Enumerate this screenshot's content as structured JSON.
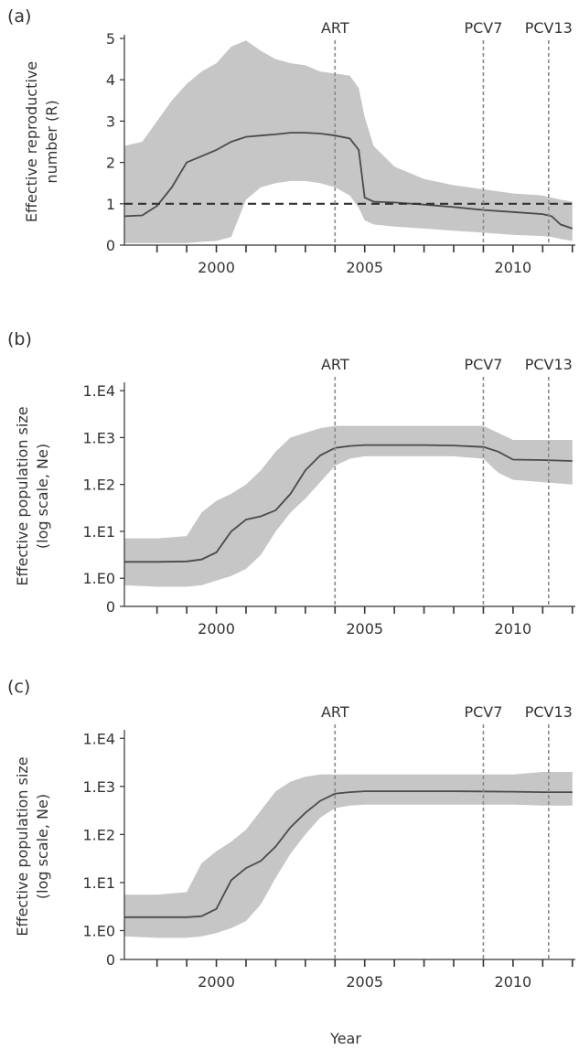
{
  "figure": {
    "xlabel": "Year",
    "colors": {
      "band": "#c6c6c6",
      "line": "#4a4a4a",
      "axis": "#333333",
      "marker": "#8a8a8a",
      "threshold": "#333333"
    }
  },
  "chart_data": [
    {
      "panel": "(a)",
      "type": "area",
      "ylabel_lines": [
        "Effective reproductive",
        "number (R)"
      ],
      "y_scale": "linear",
      "xlim": [
        1996.9,
        2012.1
      ],
      "ylim": [
        0,
        5
      ],
      "yticks": [
        {
          "v": 0,
          "label": "0"
        },
        {
          "v": 1,
          "label": "1"
        },
        {
          "v": 2,
          "label": "2"
        },
        {
          "v": 3,
          "label": "3"
        },
        {
          "v": 4,
          "label": "4"
        },
        {
          "v": 5,
          "label": "5"
        }
      ],
      "xtick_labels": [
        {
          "v": 2000,
          "label": "2000"
        },
        {
          "v": 2005,
          "label": "2005"
        },
        {
          "v": 2010,
          "label": "2010"
        }
      ],
      "markers": [
        {
          "v": 2004,
          "label": "ART"
        },
        {
          "v": 2009,
          "label": "PCV7"
        },
        {
          "v": 2011.2,
          "label": "PCV13"
        }
      ],
      "threshold": 1.0,
      "x": [
        1996.9,
        1997.5,
        1998.0,
        1998.5,
        1999.0,
        1999.5,
        2000.0,
        2000.5,
        2001.0,
        2001.5,
        2002.0,
        2002.5,
        2003.0,
        2003.5,
        2004.0,
        2004.5,
        2004.8,
        2005.0,
        2005.3,
        2006.0,
        2007.0,
        2008.0,
        2009.0,
        2010.0,
        2011.0,
        2011.3,
        2011.6,
        2012.0
      ],
      "median": [
        0.7,
        0.72,
        0.95,
        1.4,
        2.0,
        2.15,
        2.3,
        2.5,
        2.62,
        2.65,
        2.68,
        2.72,
        2.72,
        2.7,
        2.65,
        2.58,
        2.3,
        1.15,
        1.05,
        1.03,
        0.98,
        0.92,
        0.85,
        0.8,
        0.75,
        0.7,
        0.5,
        0.4
      ],
      "upper": [
        2.4,
        2.5,
        3.0,
        3.5,
        3.9,
        4.2,
        4.4,
        4.8,
        4.95,
        4.7,
        4.5,
        4.4,
        4.35,
        4.2,
        4.15,
        4.1,
        3.8,
        3.1,
        2.4,
        1.9,
        1.6,
        1.45,
        1.35,
        1.25,
        1.2,
        1.15,
        1.1,
        1.05
      ],
      "lower": [
        0.05,
        0.05,
        0.05,
        0.05,
        0.05,
        0.08,
        0.1,
        0.2,
        1.1,
        1.4,
        1.5,
        1.55,
        1.55,
        1.5,
        1.4,
        1.2,
        0.9,
        0.6,
        0.5,
        0.45,
        0.4,
        0.35,
        0.3,
        0.25,
        0.22,
        0.2,
        0.15,
        0.1
      ]
    },
    {
      "panel": "(b)",
      "type": "area",
      "ylabel_lines": [
        "Effective population size",
        "(log scale, Ne)"
      ],
      "y_scale": "log",
      "xlim": [
        1996.9,
        2012.1
      ],
      "ylim": [
        -0.6,
        4.1
      ],
      "yticks": [
        {
          "v": -0.6,
          "label": "0"
        },
        {
          "v": 0,
          "label": "1.E0"
        },
        {
          "v": 1,
          "label": "1.E1"
        },
        {
          "v": 2,
          "label": "1.E2"
        },
        {
          "v": 3,
          "label": "1.E3"
        },
        {
          "v": 4,
          "label": "1.E4"
        }
      ],
      "xtick_labels": [
        {
          "v": 2000,
          "label": "2000"
        },
        {
          "v": 2005,
          "label": "2005"
        },
        {
          "v": 2010,
          "label": "2010"
        }
      ],
      "markers": [
        {
          "v": 2004,
          "label": "ART"
        },
        {
          "v": 2009,
          "label": "PCV7"
        },
        {
          "v": 2011.2,
          "label": "PCV13"
        }
      ],
      "x": [
        1996.9,
        1998.0,
        1999.0,
        1999.5,
        2000.0,
        2000.5,
        2001.0,
        2001.5,
        2002.0,
        2002.5,
        2003.0,
        2003.5,
        2004.0,
        2004.5,
        2005.0,
        2006.0,
        2007.0,
        2008.0,
        2009.0,
        2009.5,
        2010.0,
        2011.0,
        2012.0
      ],
      "median": [
        0.35,
        0.35,
        0.36,
        0.4,
        0.55,
        1.0,
        1.25,
        1.32,
        1.45,
        1.8,
        2.3,
        2.62,
        2.78,
        2.82,
        2.84,
        2.84,
        2.84,
        2.83,
        2.8,
        2.7,
        2.53,
        2.52,
        2.5
      ],
      "upper": [
        0.85,
        0.85,
        0.9,
        1.4,
        1.65,
        1.8,
        2.0,
        2.3,
        2.7,
        3.0,
        3.1,
        3.2,
        3.25,
        3.25,
        3.25,
        3.25,
        3.25,
        3.25,
        3.25,
        3.1,
        2.95,
        2.95,
        2.95
      ],
      "lower": [
        -0.15,
        -0.18,
        -0.18,
        -0.15,
        -0.05,
        0.05,
        0.2,
        0.5,
        1.0,
        1.4,
        1.7,
        2.05,
        2.4,
        2.55,
        2.6,
        2.6,
        2.6,
        2.6,
        2.55,
        2.25,
        2.1,
        2.05,
        2.0
      ]
    },
    {
      "panel": "(c)",
      "type": "area",
      "ylabel_lines": [
        "Effective population size",
        "(log scale, Ne)"
      ],
      "y_scale": "log",
      "xlim": [
        1996.9,
        2012.1
      ],
      "ylim": [
        -0.6,
        4.1
      ],
      "yticks": [
        {
          "v": -0.6,
          "label": "0"
        },
        {
          "v": 0,
          "label": "1.E0"
        },
        {
          "v": 1,
          "label": "1.E1"
        },
        {
          "v": 2,
          "label": "1.E2"
        },
        {
          "v": 3,
          "label": "1.E3"
        },
        {
          "v": 4,
          "label": "1.E4"
        }
      ],
      "xtick_labels": [
        {
          "v": 2000,
          "label": "2000"
        },
        {
          "v": 2005,
          "label": "2005"
        },
        {
          "v": 2010,
          "label": "2010"
        }
      ],
      "markers": [
        {
          "v": 2004,
          "label": "ART"
        },
        {
          "v": 2009,
          "label": "PCV7"
        },
        {
          "v": 2011.2,
          "label": "PCV13"
        }
      ],
      "x": [
        1996.9,
        1998.0,
        1999.0,
        1999.5,
        2000.0,
        2000.5,
        2001.0,
        2001.5,
        2002.0,
        2002.5,
        2003.0,
        2003.5,
        2004.0,
        2004.5,
        2005.0,
        2006.0,
        2008.0,
        2010.0,
        2011.0,
        2012.0
      ],
      "median": [
        0.28,
        0.28,
        0.28,
        0.3,
        0.45,
        1.05,
        1.3,
        1.45,
        1.75,
        2.15,
        2.45,
        2.7,
        2.85,
        2.88,
        2.9,
        2.9,
        2.9,
        2.89,
        2.88,
        2.88
      ],
      "upper": [
        0.75,
        0.75,
        0.8,
        1.4,
        1.65,
        1.85,
        2.1,
        2.5,
        2.9,
        3.1,
        3.2,
        3.25,
        3.25,
        3.25,
        3.25,
        3.25,
        3.25,
        3.25,
        3.3,
        3.3
      ],
      "lower": [
        -0.12,
        -0.15,
        -0.15,
        -0.12,
        -0.05,
        0.05,
        0.2,
        0.55,
        1.1,
        1.6,
        2.0,
        2.35,
        2.55,
        2.6,
        2.62,
        2.62,
        2.62,
        2.62,
        2.6,
        2.6
      ]
    }
  ]
}
